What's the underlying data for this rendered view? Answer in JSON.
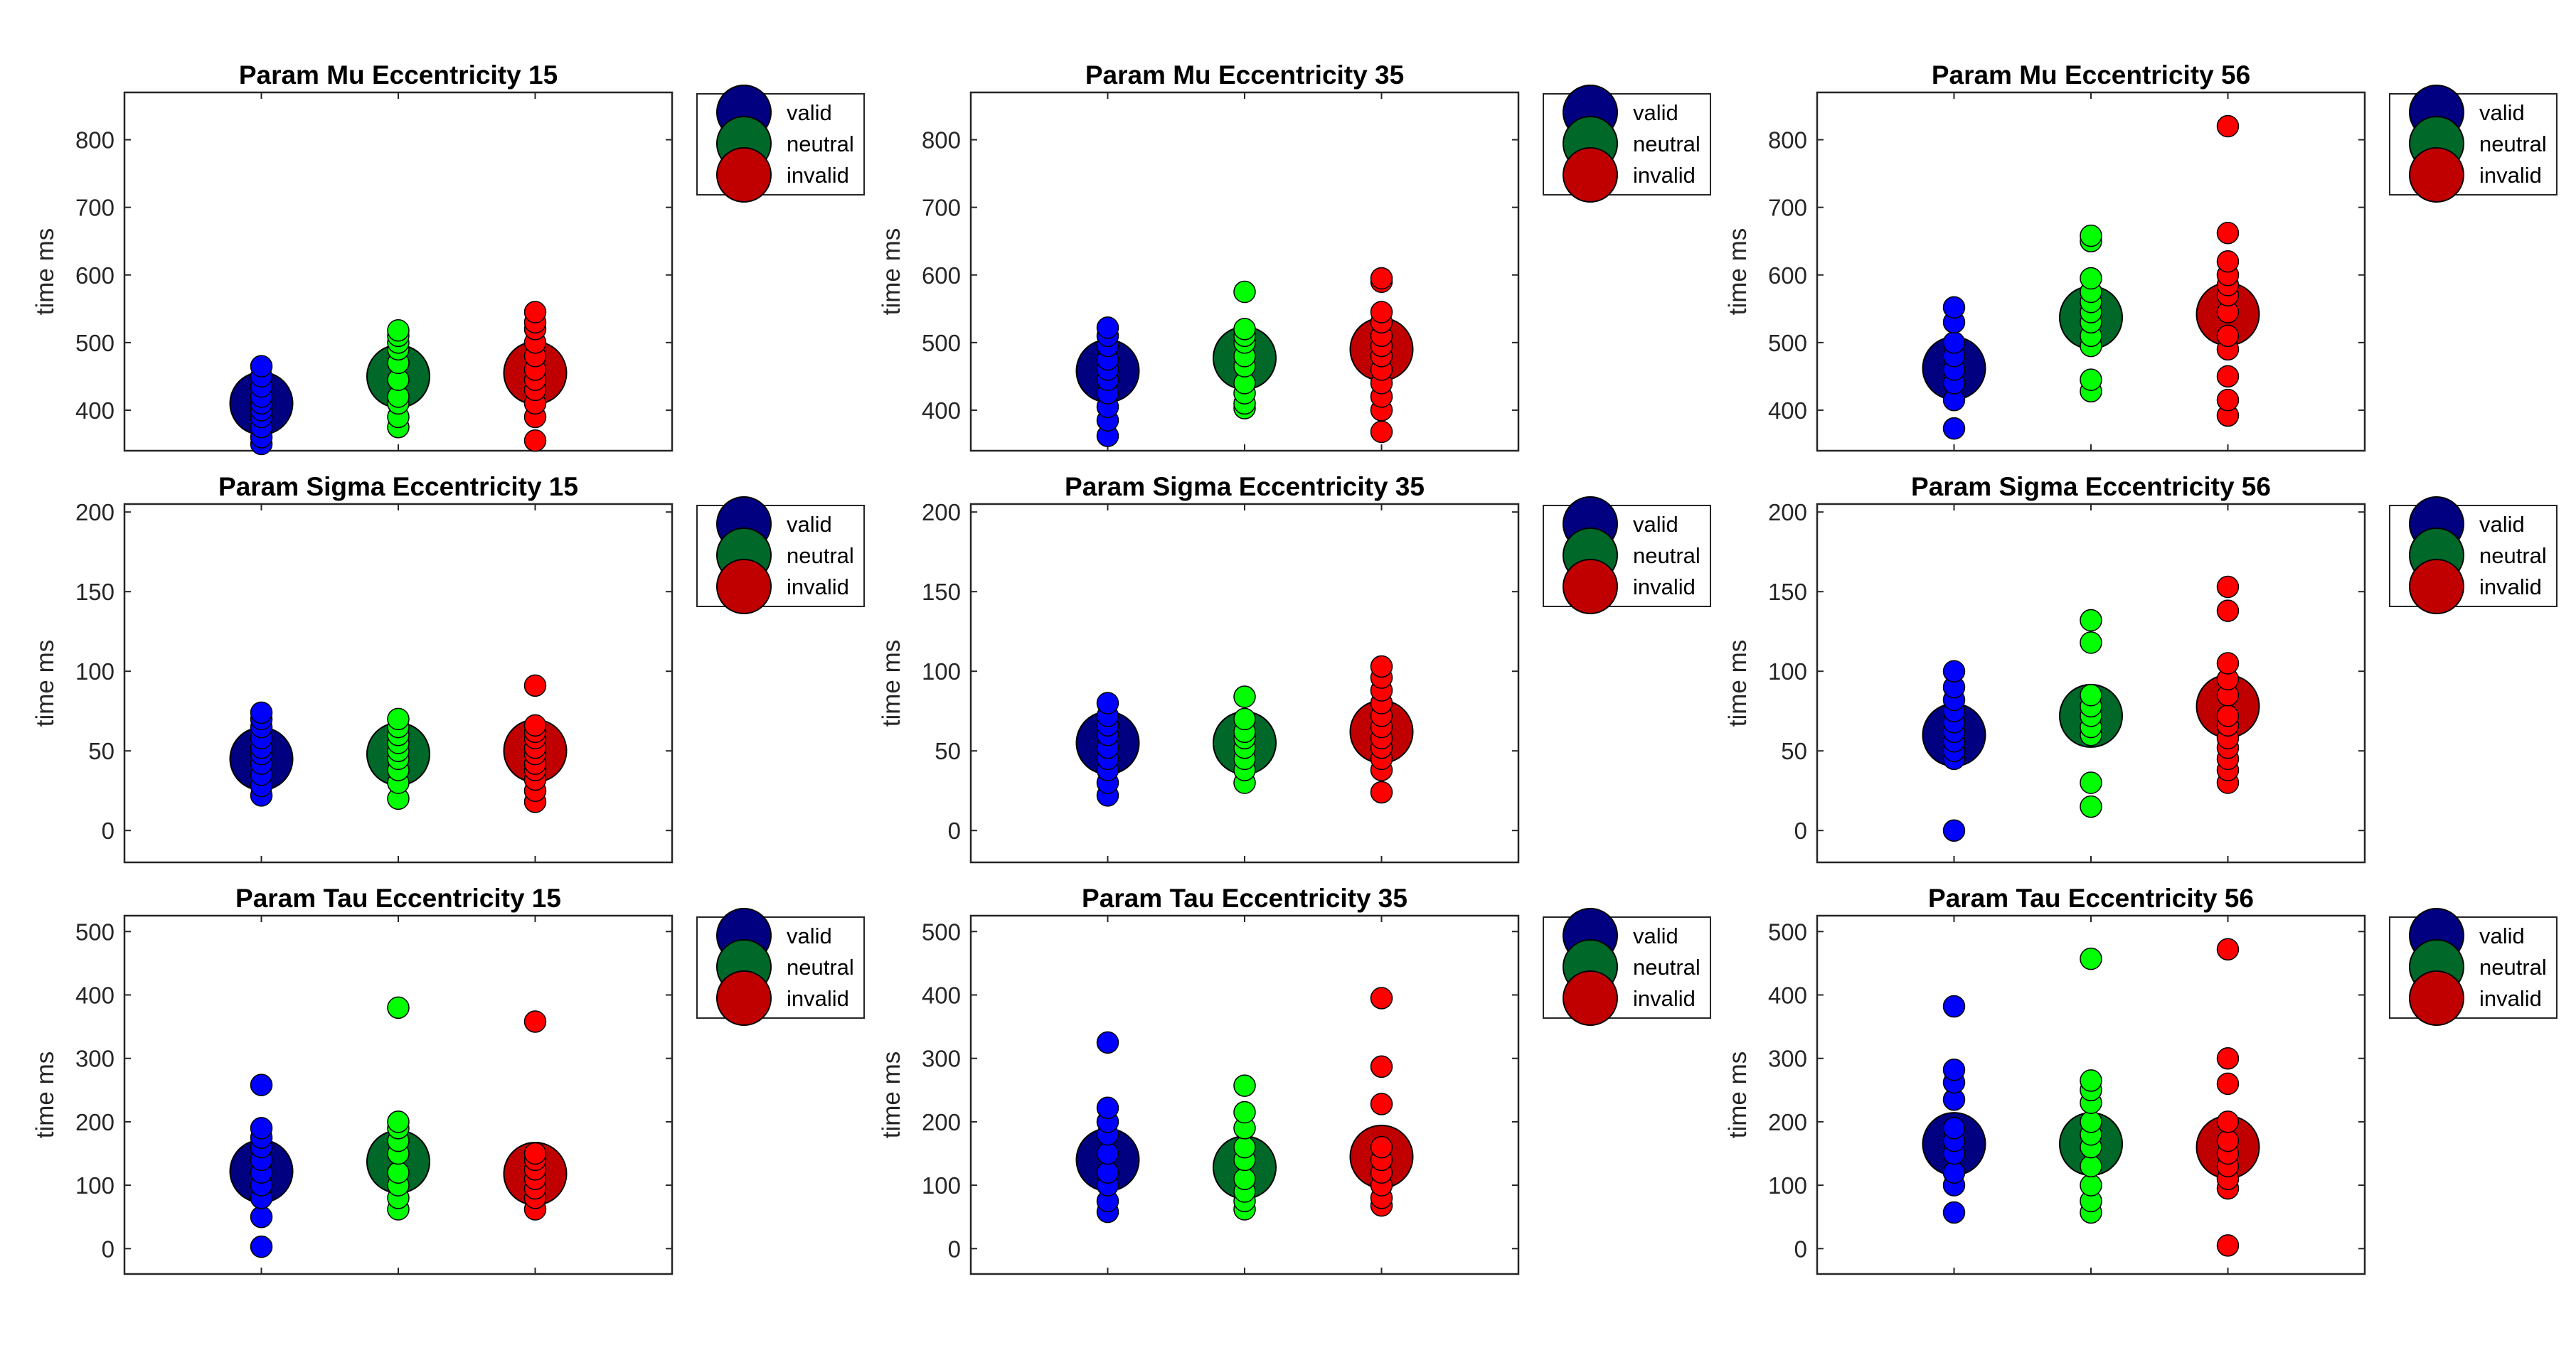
{
  "chart_data": [
    {
      "type": "scatter",
      "title": "Param Mu Eccentricity 15",
      "ylabel": "time ms",
      "ylim": [
        340,
        870
      ],
      "yticks": [
        400,
        500,
        600,
        700,
        800
      ],
      "legend": [
        "valid",
        "neutral",
        "invalid"
      ],
      "series": [
        {
          "name": "valid",
          "mean": 410,
          "values": [
            350,
            360,
            375,
            390,
            400,
            410,
            420,
            435,
            450,
            465
          ]
        },
        {
          "name": "neutral",
          "mean": 450,
          "values": [
            375,
            390,
            410,
            420,
            445,
            470,
            490,
            500,
            510,
            518
          ]
        },
        {
          "name": "invalid",
          "mean": 455,
          "values": [
            355,
            390,
            410,
            430,
            445,
            460,
            480,
            500,
            520,
            530,
            545
          ]
        }
      ]
    },
    {
      "type": "scatter",
      "title": "Param Mu Eccentricity 35",
      "ylabel": "time ms",
      "ylim": [
        340,
        870
      ],
      "yticks": [
        400,
        500,
        600,
        700,
        800
      ],
      "legend": [
        "valid",
        "neutral",
        "invalid"
      ],
      "series": [
        {
          "name": "valid",
          "mean": 458,
          "values": [
            362,
            385,
            405,
            425,
            445,
            460,
            475,
            495,
            510,
            522
          ]
        },
        {
          "name": "neutral",
          "mean": 477,
          "values": [
            403,
            410,
            425,
            440,
            465,
            480,
            500,
            510,
            520,
            575
          ]
        },
        {
          "name": "invalid",
          "mean": 490,
          "values": [
            368,
            400,
            420,
            440,
            460,
            480,
            495,
            510,
            530,
            545,
            590,
            595
          ]
        }
      ]
    },
    {
      "type": "scatter",
      "title": "Param Mu Eccentricity 56",
      "ylabel": "time ms",
      "ylim": [
        340,
        870
      ],
      "yticks": [
        400,
        500,
        600,
        700,
        800
      ],
      "legend": [
        "valid",
        "neutral",
        "invalid"
      ],
      "series": [
        {
          "name": "valid",
          "mean": 462,
          "values": [
            373,
            415,
            440,
            460,
            480,
            500,
            530,
            552
          ]
        },
        {
          "name": "neutral",
          "mean": 537,
          "values": [
            428,
            445,
            495,
            510,
            530,
            545,
            560,
            575,
            595,
            650,
            658
          ]
        },
        {
          "name": "invalid",
          "mean": 542,
          "values": [
            392,
            415,
            450,
            490,
            510,
            545,
            570,
            585,
            600,
            620,
            662,
            820
          ]
        }
      ]
    },
    {
      "type": "scatter",
      "title": "Param Sigma Eccentricity 15",
      "ylabel": "time ms",
      "ylim": [
        -20,
        205
      ],
      "yticks": [
        0,
        50,
        100,
        150,
        200
      ],
      "legend": [
        "valid",
        "neutral",
        "invalid"
      ],
      "series": [
        {
          "name": "valid",
          "mean": 45,
          "values": [
            22,
            28,
            35,
            42,
            48,
            52,
            58,
            65,
            70,
            74
          ]
        },
        {
          "name": "neutral",
          "mean": 48,
          "values": [
            20,
            30,
            38,
            45,
            50,
            55,
            60,
            65,
            70
          ]
        },
        {
          "name": "invalid",
          "mean": 50,
          "values": [
            18,
            25,
            32,
            38,
            42,
            48,
            52,
            58,
            62,
            66,
            91
          ]
        }
      ]
    },
    {
      "type": "scatter",
      "title": "Param Sigma Eccentricity 35",
      "ylabel": "time ms",
      "ylim": [
        -20,
        205
      ],
      "yticks": [
        0,
        50,
        100,
        150,
        200
      ],
      "legend": [
        "valid",
        "neutral",
        "invalid"
      ],
      "series": [
        {
          "name": "valid",
          "mean": 55,
          "values": [
            22,
            30,
            38,
            45,
            52,
            60,
            66,
            72,
            80
          ]
        },
        {
          "name": "neutral",
          "mean": 55,
          "values": [
            30,
            38,
            45,
            52,
            58,
            62,
            70,
            84
          ]
        },
        {
          "name": "invalid",
          "mean": 62,
          "values": [
            24,
            38,
            45,
            52,
            58,
            65,
            72,
            80,
            88,
            96,
            103
          ]
        }
      ]
    },
    {
      "type": "scatter",
      "title": "Param Sigma Eccentricity 56",
      "ylabel": "time ms",
      "ylim": [
        -20,
        205
      ],
      "yticks": [
        0,
        50,
        100,
        150,
        200
      ],
      "legend": [
        "valid",
        "neutral",
        "invalid"
      ],
      "series": [
        {
          "name": "valid",
          "mean": 60,
          "values": [
            0,
            45,
            50,
            56,
            62,
            68,
            75,
            82,
            90,
            100
          ]
        },
        {
          "name": "neutral",
          "mean": 72,
          "values": [
            15,
            30,
            60,
            65,
            72,
            78,
            85,
            118,
            132
          ]
        },
        {
          "name": "invalid",
          "mean": 78,
          "values": [
            30,
            38,
            45,
            52,
            58,
            66,
            72,
            85,
            95,
            105,
            138,
            153
          ]
        }
      ]
    },
    {
      "type": "scatter",
      "title": "Param Tau Eccentricity 15",
      "ylabel": "time ms",
      "ylim": [
        -40,
        525
      ],
      "yticks": [
        0,
        100,
        200,
        300,
        400,
        500
      ],
      "legend": [
        "valid",
        "neutral",
        "invalid"
      ],
      "series": [
        {
          "name": "valid",
          "mean": 122,
          "values": [
            3,
            50,
            80,
            100,
            120,
            140,
            160,
            175,
            190,
            258
          ]
        },
        {
          "name": "neutral",
          "mean": 137,
          "values": [
            62,
            80,
            100,
            120,
            150,
            170,
            190,
            200,
            380
          ]
        },
        {
          "name": "invalid",
          "mean": 118,
          "values": [
            62,
            80,
            95,
            110,
            125,
            140,
            150,
            358
          ]
        }
      ]
    },
    {
      "type": "scatter",
      "title": "Param Tau Eccentricity 35",
      "ylabel": "time ms",
      "ylim": [
        -40,
        525
      ],
      "yticks": [
        0,
        100,
        200,
        300,
        400,
        500
      ],
      "legend": [
        "valid",
        "neutral",
        "invalid"
      ],
      "series": [
        {
          "name": "valid",
          "mean": 140,
          "values": [
            58,
            75,
            100,
            120,
            150,
            180,
            200,
            222,
            325
          ]
        },
        {
          "name": "neutral",
          "mean": 128,
          "values": [
            62,
            75,
            90,
            110,
            140,
            160,
            190,
            215,
            257
          ]
        },
        {
          "name": "invalid",
          "mean": 145,
          "values": [
            68,
            80,
            100,
            120,
            140,
            160,
            228,
            287,
            395
          ]
        }
      ]
    },
    {
      "type": "scatter",
      "title": "Param Tau Eccentricity 56",
      "ylabel": "time ms",
      "ylim": [
        -40,
        525
      ],
      "yticks": [
        0,
        100,
        200,
        300,
        400,
        500
      ],
      "legend": [
        "valid",
        "neutral",
        "invalid"
      ],
      "series": [
        {
          "name": "valid",
          "mean": 165,
          "values": [
            57,
            100,
            120,
            150,
            170,
            190,
            235,
            262,
            282,
            382
          ]
        },
        {
          "name": "neutral",
          "mean": 165,
          "values": [
            57,
            75,
            100,
            130,
            160,
            180,
            200,
            230,
            250,
            265,
            457
          ]
        },
        {
          "name": "invalid",
          "mean": 160,
          "values": [
            5,
            95,
            110,
            130,
            150,
            170,
            200,
            260,
            300,
            472
          ]
        }
      ]
    }
  ],
  "colors": {
    "valid_point": "#0000ff",
    "neutral_point": "#00ff00",
    "invalid_point": "#ff0000",
    "valid_mean": "#000080",
    "neutral_mean": "#006828",
    "invalid_mean": "#c00000"
  }
}
